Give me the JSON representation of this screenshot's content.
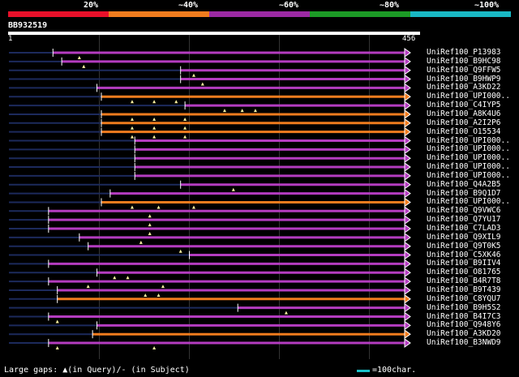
{
  "legend": {
    "segments": [
      {
        "label": "20%",
        "color": "#e8102a"
      },
      {
        "label": "~40%",
        "color": "#f07c1e"
      },
      {
        "label": "~60%",
        "color": "#9c2aa4"
      },
      {
        "label": "~80%",
        "color": "#1c9a26"
      },
      {
        "label": "~100%",
        "color": "#19b8c4"
      }
    ]
  },
  "query": {
    "id": "BB932519",
    "start": "1",
    "end": "456",
    "length": 456
  },
  "colors": {
    "purple": "#b43cc0",
    "orange": "#f07c1e",
    "dark": "#1c2a5c",
    "gap": "#f8f0a0"
  },
  "hits": [
    {
      "name": "UniRef100_P13983",
      "color": "purple",
      "start": 50,
      "end": 456,
      "gaps": [
        80
      ]
    },
    {
      "name": "UniRef100_B9HC98",
      "color": "purple",
      "start": 60,
      "end": 456,
      "gaps": [
        85
      ]
    },
    {
      "name": "UniRef100_Q9FFW5",
      "color": "purple",
      "start": 195,
      "end": 456,
      "gaps": [
        210
      ]
    },
    {
      "name": "UniRef100_B9HWP9",
      "color": "purple",
      "start": 195,
      "end": 456,
      "gaps": [
        220
      ]
    },
    {
      "name": "UniRef100_A3KD22",
      "color": "purple",
      "start": 100,
      "end": 456,
      "gaps": []
    },
    {
      "name": "UniRef100_UPI000..",
      "color": "orange",
      "start": 105,
      "end": 456,
      "gaps": [
        140,
        165,
        190
      ]
    },
    {
      "name": "UniRef100_C4IYP5",
      "color": "purple",
      "start": 200,
      "end": 456,
      "gaps": [
        245,
        265,
        280
      ]
    },
    {
      "name": "UniRef100_A8K4U6",
      "color": "orange",
      "start": 105,
      "end": 456,
      "gaps": [
        140,
        165,
        200
      ]
    },
    {
      "name": "UniRef100_A2I2P6",
      "color": "orange",
      "start": 105,
      "end": 456,
      "gaps": [
        140,
        165,
        200
      ]
    },
    {
      "name": "UniRef100_O15534",
      "color": "orange",
      "start": 105,
      "end": 456,
      "gaps": [
        140,
        165,
        200
      ]
    },
    {
      "name": "UniRef100_UPI000..",
      "color": "purple",
      "start": 143,
      "end": 456,
      "gaps": []
    },
    {
      "name": "UniRef100_UPI000..",
      "color": "purple",
      "start": 143,
      "end": 456,
      "gaps": []
    },
    {
      "name": "UniRef100_UPI000..",
      "color": "purple",
      "start": 143,
      "end": 456,
      "gaps": []
    },
    {
      "name": "UniRef100_UPI000..",
      "color": "purple",
      "start": 143,
      "end": 456,
      "gaps": []
    },
    {
      "name": "UniRef100_UPI000..",
      "color": "purple",
      "start": 143,
      "end": 456,
      "gaps": []
    },
    {
      "name": "UniRef100_Q4A2B5",
      "color": "purple",
      "start": 195,
      "end": 456,
      "gaps": [
        255
      ]
    },
    {
      "name": "UniRef100_B9Q1D7",
      "color": "purple",
      "start": 115,
      "end": 456,
      "gaps": []
    },
    {
      "name": "UniRef100_UPI000..",
      "color": "orange",
      "start": 105,
      "end": 456,
      "gaps": [
        140,
        170,
        210
      ]
    },
    {
      "name": "UniRef100_Q9VWC6",
      "color": "purple",
      "start": 45,
      "end": 456,
      "gaps": [
        160
      ]
    },
    {
      "name": "UniRef100_Q7YU17",
      "color": "purple",
      "start": 45,
      "end": 456,
      "gaps": [
        160
      ]
    },
    {
      "name": "UniRef100_C7LAD3",
      "color": "purple",
      "start": 45,
      "end": 456,
      "gaps": [
        160
      ]
    },
    {
      "name": "UniRef100_Q9XIL9",
      "color": "purple",
      "start": 80,
      "end": 456,
      "gaps": [
        150
      ]
    },
    {
      "name": "UniRef100_Q9T0K5",
      "color": "purple",
      "start": 90,
      "end": 456,
      "gaps": [
        195
      ]
    },
    {
      "name": "UniRef100_C5XK46",
      "color": "purple",
      "start": 205,
      "end": 456,
      "gaps": []
    },
    {
      "name": "UniRef100_B9IIV4",
      "color": "purple",
      "start": 45,
      "end": 456,
      "gaps": []
    },
    {
      "name": "UniRef100_O81765",
      "color": "purple",
      "start": 100,
      "end": 456,
      "gaps": [
        120,
        135
      ]
    },
    {
      "name": "UniRef100_B4R7T8",
      "color": "purple",
      "start": 45,
      "end": 456,
      "gaps": [
        90,
        175
      ]
    },
    {
      "name": "UniRef100_B9T439",
      "color": "purple",
      "start": 55,
      "end": 456,
      "gaps": [
        155,
        170
      ]
    },
    {
      "name": "UniRef100_C8YQU7",
      "color": "orange",
      "start": 55,
      "end": 456,
      "gaps": []
    },
    {
      "name": "UniRef100_B9H5S2",
      "color": "purple",
      "start": 260,
      "end": 456,
      "gaps": [
        315
      ]
    },
    {
      "name": "UniRef100_B4I7C3",
      "color": "purple",
      "start": 45,
      "end": 456,
      "gaps": [
        55
      ]
    },
    {
      "name": "UniRef100_Q948Y6",
      "color": "purple",
      "start": 100,
      "end": 456,
      "gaps": []
    },
    {
      "name": "UniRef100_A3KD20",
      "color": "orange",
      "start": 95,
      "end": 456,
      "gaps": []
    },
    {
      "name": "UniRef100_B3NWD9",
      "color": "purple",
      "start": 45,
      "end": 456,
      "gaps": [
        55,
        165
      ]
    }
  ],
  "footer": {
    "text": "Large gaps: ▲(in Query)/- (in Subject)",
    "scale": "=100char."
  }
}
